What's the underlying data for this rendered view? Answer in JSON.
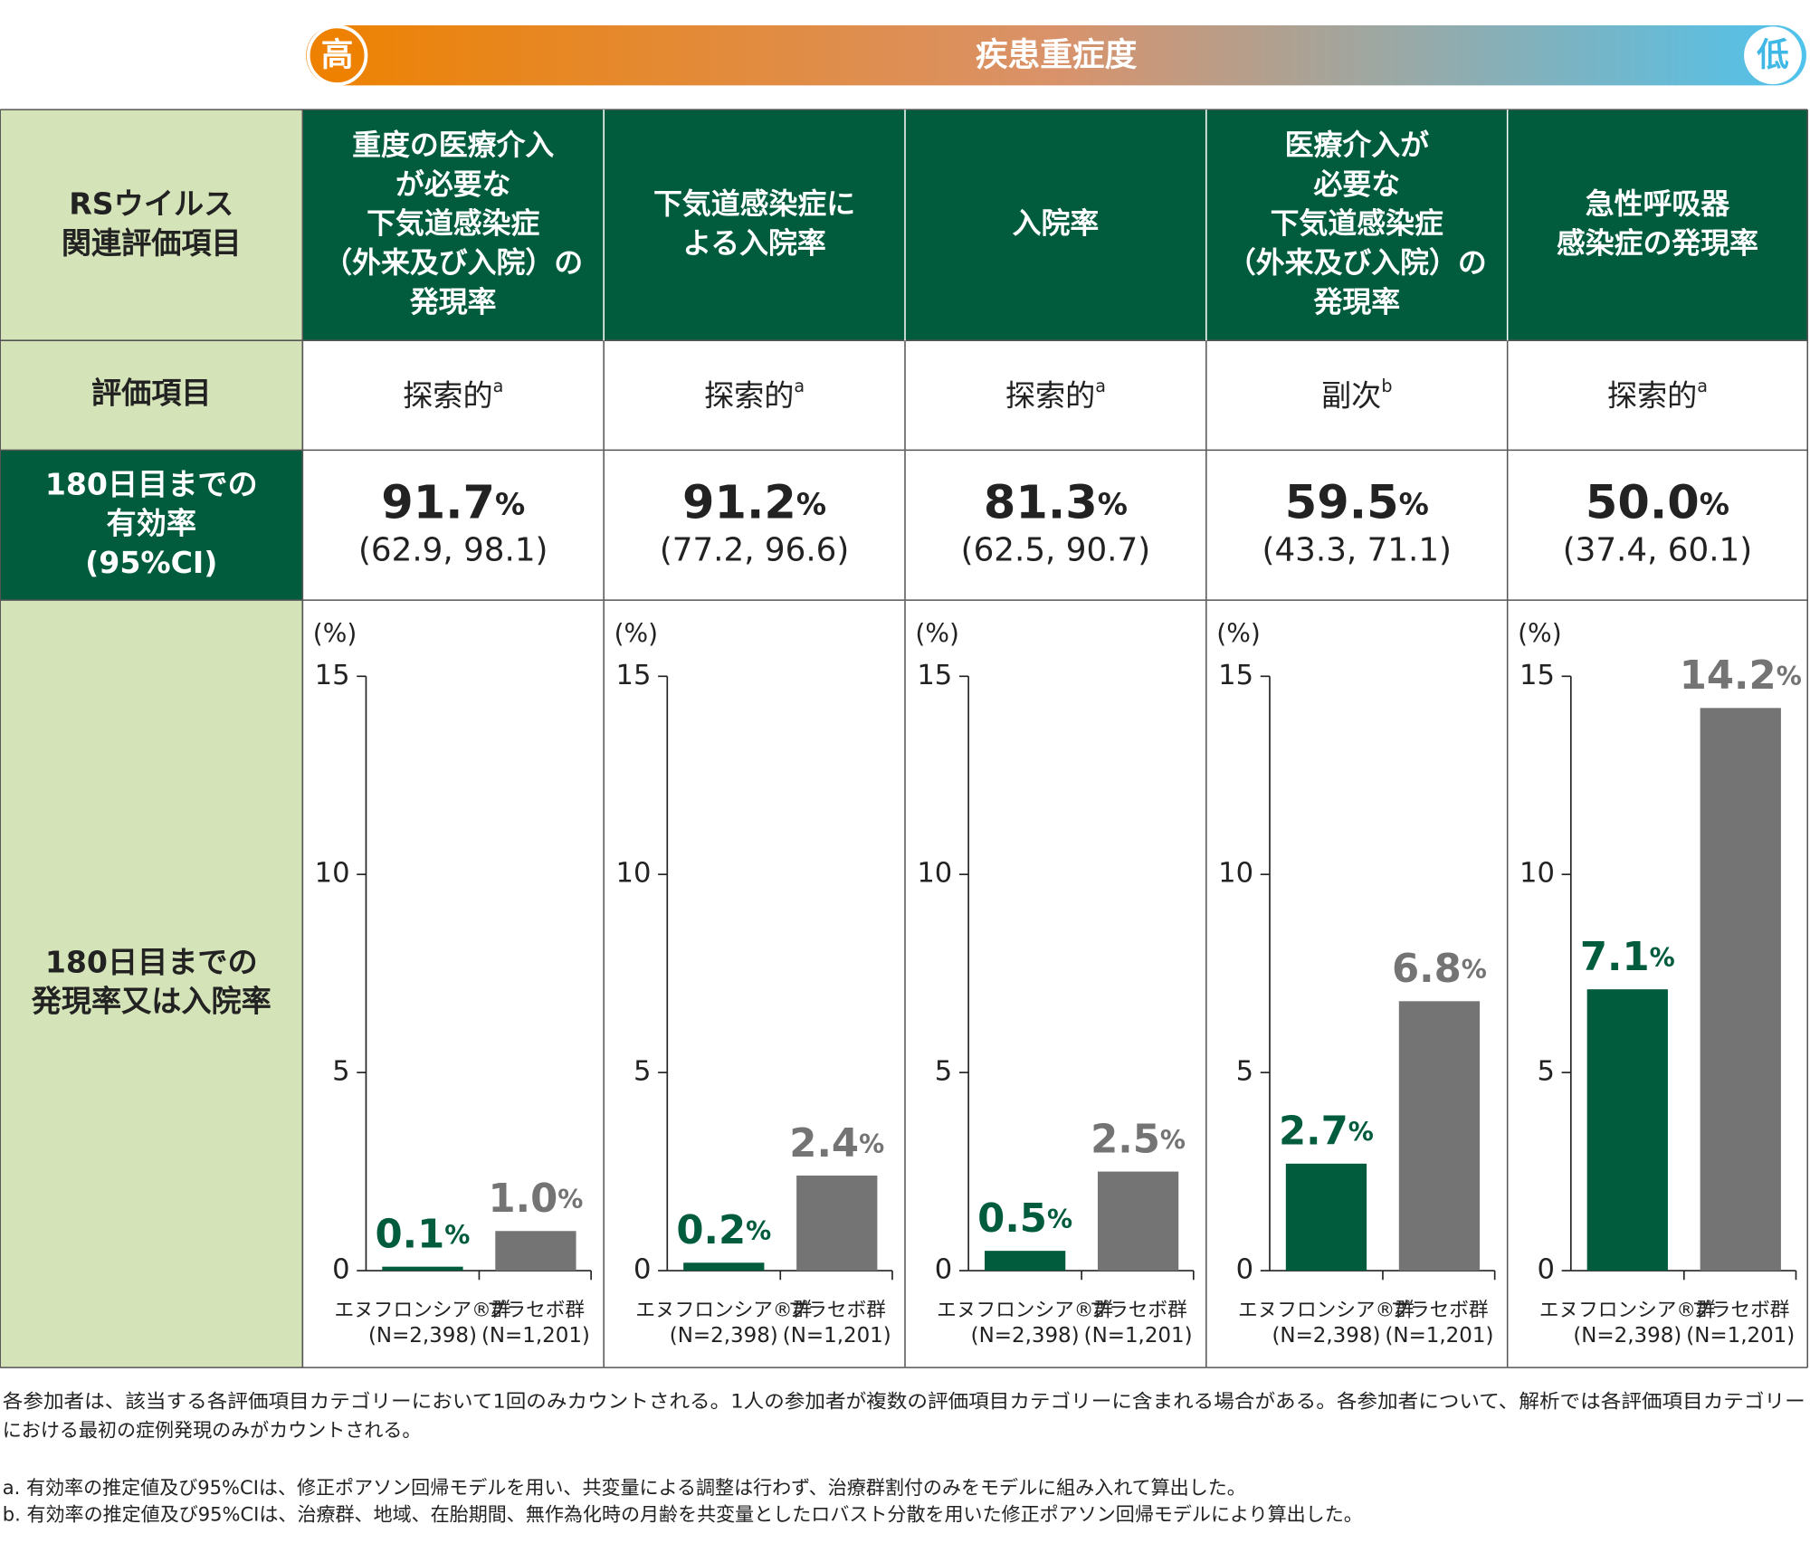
{
  "severity": {
    "label": "疾患重症度",
    "high": "高",
    "low": "低"
  },
  "table": {
    "row_headers": [
      [
        "RSウイルス",
        "関連評価項目"
      ],
      [
        "評価項目"
      ],
      [
        "180日目までの",
        "有効率",
        "(95%CI)"
      ],
      [
        "180日目までの",
        "発現率又は入院率"
      ]
    ],
    "percent": "%",
    "columns": [
      {
        "header": [
          "重度の医療介入",
          "が必要な",
          "下気道感染症",
          "（外来及び入院）の",
          "発現率"
        ],
        "endpoint": "探索的",
        "endpoint_note": "a",
        "efficacy": "91.7",
        "ci": "(62.9, 98.1)"
      },
      {
        "header": [
          "下気道感染症に",
          "よる入院率"
        ],
        "endpoint": "探索的",
        "endpoint_note": "a",
        "efficacy": "91.2",
        "ci": "(77.2, 96.6)"
      },
      {
        "header": [
          "入院率"
        ],
        "endpoint": "探索的",
        "endpoint_note": "a",
        "efficacy": "81.3",
        "ci": "(62.5, 90.7)"
      },
      {
        "header": [
          "医療介入が",
          "必要な",
          "下気道感染症",
          "（外来及び入院）の",
          "発現率"
        ],
        "endpoint": "副次",
        "endpoint_note": "b",
        "efficacy": "59.5",
        "ci": "(43.3, 71.1)"
      },
      {
        "header": [
          "急性呼吸器",
          "感染症の発現率"
        ],
        "endpoint": "探索的",
        "endpoint_note": "a",
        "efficacy": "50.0",
        "ci": "(37.4, 60.1)"
      }
    ]
  },
  "chart_data": [
    {
      "type": "bar",
      "y_label": "(%)",
      "categories": [
        "エヌフロンシア®群",
        "プラセボ群"
      ],
      "group_sizes": [
        "(N=2,398)",
        "(N=1,201)"
      ],
      "values": [
        0.1,
        1.0
      ],
      "value_labels": [
        "0.1",
        "1.0"
      ],
      "unit": "%",
      "colors": [
        "#005c3c",
        "#747474"
      ],
      "ylim": [
        0,
        15
      ],
      "yticks": [
        0,
        5,
        10,
        15
      ]
    },
    {
      "type": "bar",
      "y_label": "(%)",
      "categories": [
        "エヌフロンシア®群",
        "プラセボ群"
      ],
      "group_sizes": [
        "(N=2,398)",
        "(N=1,201)"
      ],
      "values": [
        0.2,
        2.4
      ],
      "value_labels": [
        "0.2",
        "2.4"
      ],
      "unit": "%",
      "colors": [
        "#005c3c",
        "#747474"
      ],
      "ylim": [
        0,
        15
      ],
      "yticks": [
        0,
        5,
        10,
        15
      ]
    },
    {
      "type": "bar",
      "y_label": "(%)",
      "categories": [
        "エヌフロンシア®群",
        "プラセボ群"
      ],
      "group_sizes": [
        "(N=2,398)",
        "(N=1,201)"
      ],
      "values": [
        0.5,
        2.5
      ],
      "value_labels": [
        "0.5",
        "2.5"
      ],
      "unit": "%",
      "colors": [
        "#005c3c",
        "#747474"
      ],
      "ylim": [
        0,
        15
      ],
      "yticks": [
        0,
        5,
        10,
        15
      ]
    },
    {
      "type": "bar",
      "y_label": "(%)",
      "categories": [
        "エヌフロンシア®群",
        "プラセボ群"
      ],
      "group_sizes": [
        "(N=2,398)",
        "(N=1,201)"
      ],
      "values": [
        2.7,
        6.8
      ],
      "value_labels": [
        "2.7",
        "6.8"
      ],
      "unit": "%",
      "colors": [
        "#005c3c",
        "#747474"
      ],
      "ylim": [
        0,
        15
      ],
      "yticks": [
        0,
        5,
        10,
        15
      ]
    },
    {
      "type": "bar",
      "y_label": "(%)",
      "categories": [
        "エヌフロンシア®群",
        "プラセボ群"
      ],
      "group_sizes": [
        "(N=2,398)",
        "(N=1,201)"
      ],
      "values": [
        7.1,
        14.2
      ],
      "value_labels": [
        "7.1",
        "14.2"
      ],
      "unit": "%",
      "colors": [
        "#005c3c",
        "#747474"
      ],
      "ylim": [
        0,
        15
      ],
      "yticks": [
        0,
        5,
        10,
        15
      ]
    }
  ],
  "footnotes": [
    [
      "各参加者は、該当する各評価項目カテゴリーにおいて1回のみカウントされる。1人の参加者が複数の評価項目カテゴリーに含まれる場合がある。各参加者について、解析では各評価項目カテゴリー",
      "における最初の症例発現のみがカウントされる。"
    ],
    [
      "a. 有効率の推定値及び95%CIは、修正ポアソン回帰モデルを用い、共変量による調整は行わず、治療群割付のみをモデルに組み入れて算出した。"
    ],
    [
      "b. 有効率の推定値及び95%CIは、治療群、地域、在胎期間、無作為化時の月齢を共変量としたロバスト分散を用いた修正ポアソン回帰モデルにより算出した。"
    ]
  ]
}
